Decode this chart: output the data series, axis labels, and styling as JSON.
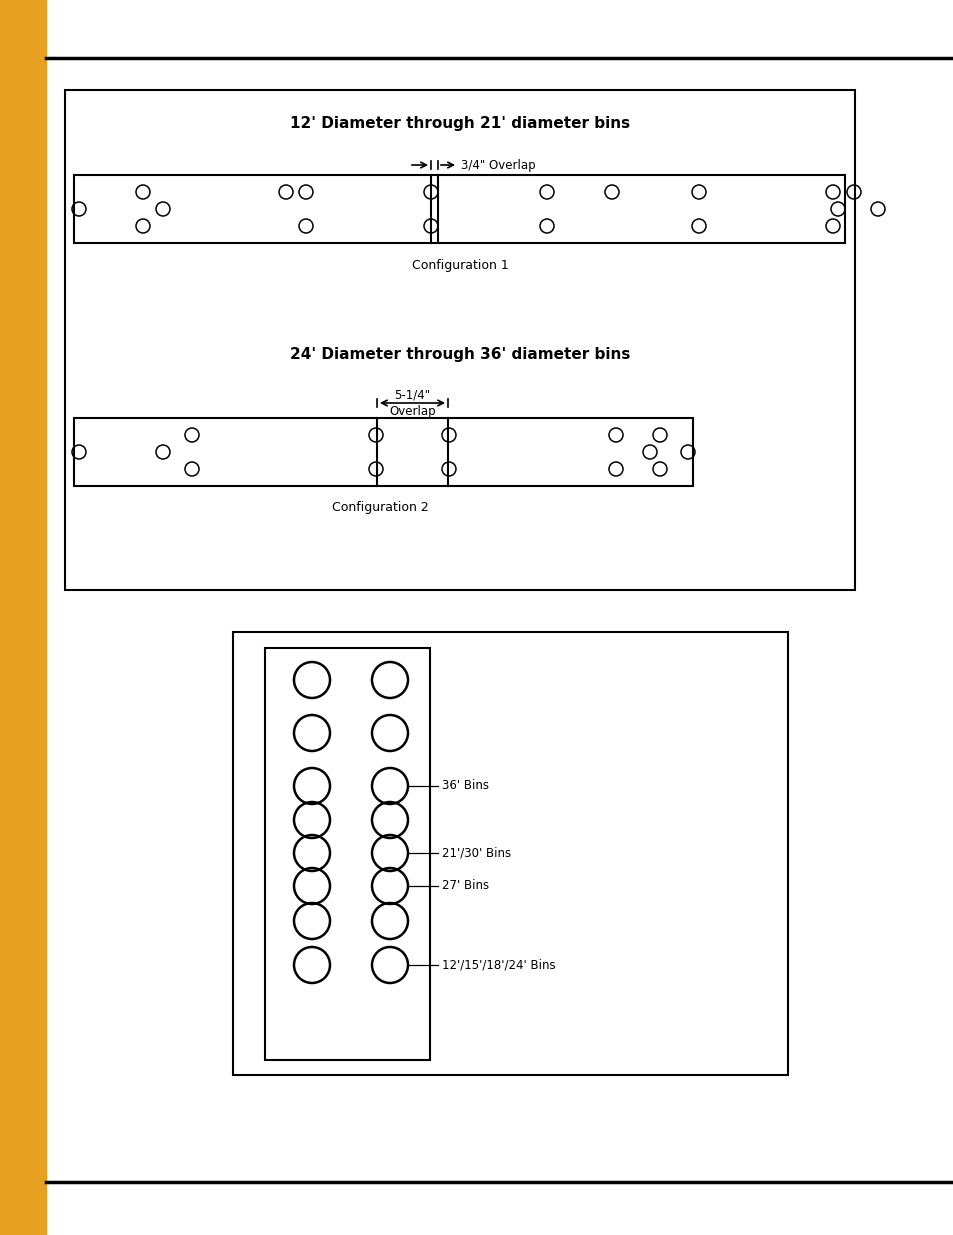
{
  "bg_color": "#ffffff",
  "sidebar_color": "#E8A020",
  "top_bar_color": "#111111",
  "bottom_bar_color": "#111111",
  "title1": "12' Diameter through 21' diameter bins",
  "title2": "24' Diameter through 36' diameter bins",
  "overlap1_label": "3/4\" Overlap",
  "overlap2_label1": "5-1/4\"",
  "overlap2_label2": "Overlap",
  "config1_label": "Configuration 1",
  "config2_label": "Configuration 2",
  "label_36": "36' Bins",
  "label_2130": "21'/30' Bins",
  "label_27": "27' Bins",
  "label_121518": "12'/15'/18'/24' Bins"
}
